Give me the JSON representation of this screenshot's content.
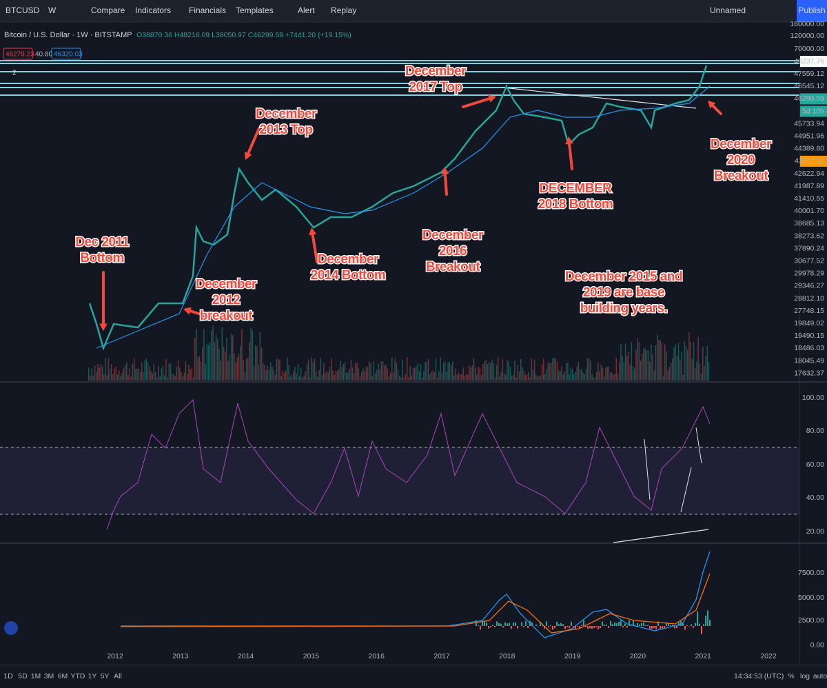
{
  "toolbar": {
    "symbol": "BTCUSD",
    "interval": "W",
    "buttons": [
      "Compare",
      "Indicators",
      "Financials",
      "Templates",
      "Alert",
      "Replay"
    ],
    "layout_name": "Unnamed",
    "publish": "Publish"
  },
  "legend": {
    "title": "Bitcoin / U.S. Dollar · 1W · BITSTAMP",
    "ohlc": "O38870.36 H48216.09 L38050.97 C46299.59 +7441.20 (+19.15%)",
    "indicators": [
      "46279.23",
      "40.80",
      "46320.03"
    ],
    "pane_count": "2"
  },
  "price_axis": [
    "160000.00",
    "120000.00",
    "70000.00",
    "48237.76",
    "47559.12",
    "46545.12",
    "46299.59",
    "5d 10h",
    "45733.94",
    "44951.96",
    "44389.80",
    "43507.11",
    "42622.94",
    "41987.89",
    "41410.55",
    "40001.70",
    "38685.13",
    "38273.62",
    "37890.24",
    "30677.52",
    "29978.29",
    "29346.27",
    "28812.10",
    "27748.15",
    "19849.02",
    "19490.15",
    "18486.03",
    "18045.49",
    "17632.37"
  ],
  "rsi_axis": [
    "100.00",
    "80.00",
    "60.00",
    "40.00",
    "20.00"
  ],
  "macd_axis": [
    "7500.00",
    "5000.00",
    "2500.00",
    "0.00"
  ],
  "time_axis": [
    "2012",
    "2013",
    "2014",
    "2015",
    "2016",
    "2017",
    "2018",
    "2019",
    "2020",
    "2021",
    "2022"
  ],
  "annotations": [
    {
      "lines": [
        "Dec 2011",
        "Bottom"
      ]
    },
    {
      "lines": [
        "December",
        "2012",
        "breakout"
      ]
    },
    {
      "lines": [
        "December",
        "2013 Top"
      ]
    },
    {
      "lines": [
        "December",
        "2014 Bottom"
      ]
    },
    {
      "lines": [
        "December",
        "2016",
        "Breakout"
      ]
    },
    {
      "lines": [
        "December",
        "2017 Top"
      ]
    },
    {
      "lines": [
        "DECEMBER",
        "2018 Bottom"
      ]
    },
    {
      "lines": [
        "December 2015 and",
        "2019 are base",
        "building years."
      ]
    },
    {
      "lines": [
        "December",
        "2020",
        "Breakout"
      ]
    }
  ],
  "bottom_bar": {
    "ranges": [
      "1D",
      "5D",
      "1M",
      "3M",
      "6M",
      "YTD",
      "1Y",
      "5Y",
      "All"
    ],
    "time": "14:34:53 (UTC)",
    "options": [
      "%",
      "log",
      "auto"
    ]
  }
}
